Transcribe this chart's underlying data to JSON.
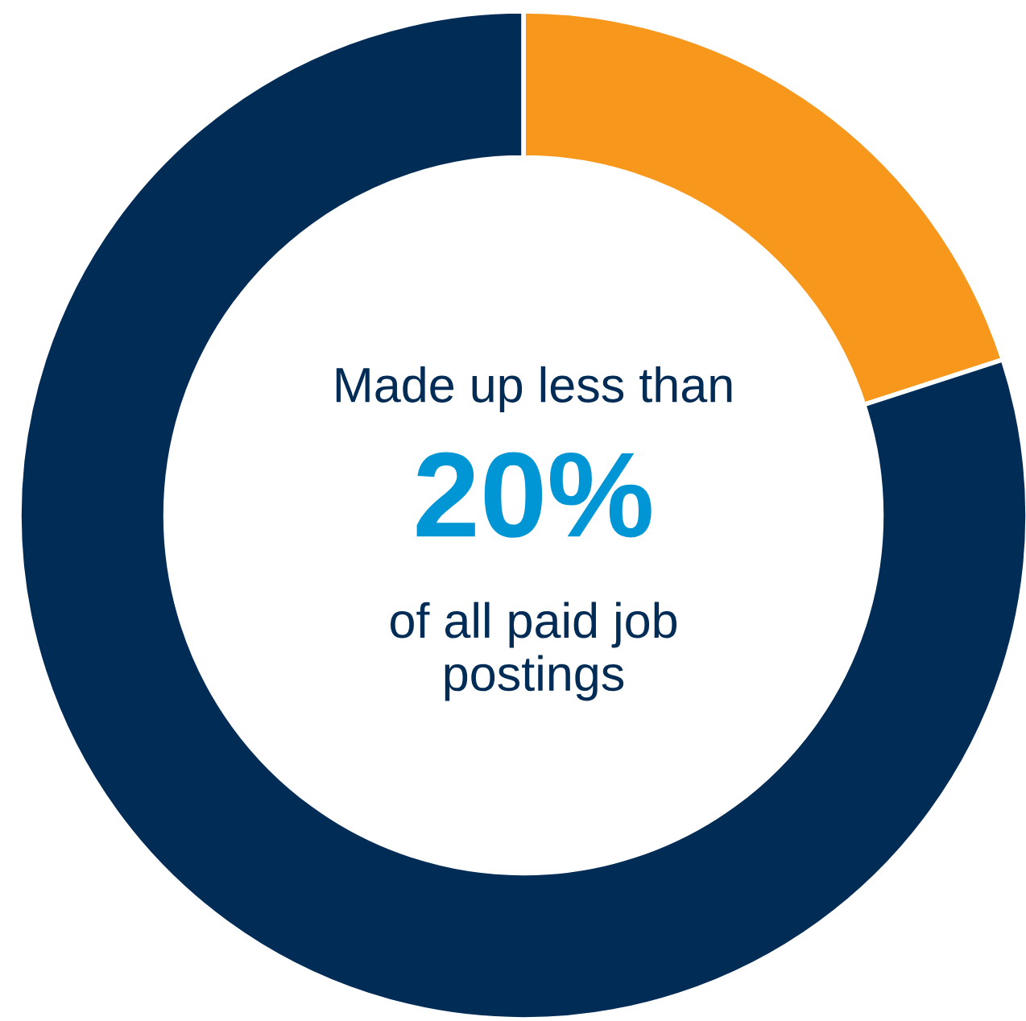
{
  "chart_data": {
    "type": "donut",
    "categories": [
      null,
      null
    ],
    "values": [
      20,
      80
    ],
    "colors": [
      "#f7981d",
      "#002c56"
    ],
    "annotations": [
      "Made up less than",
      "20%",
      "of all paid job\npostings"
    ]
  }
}
